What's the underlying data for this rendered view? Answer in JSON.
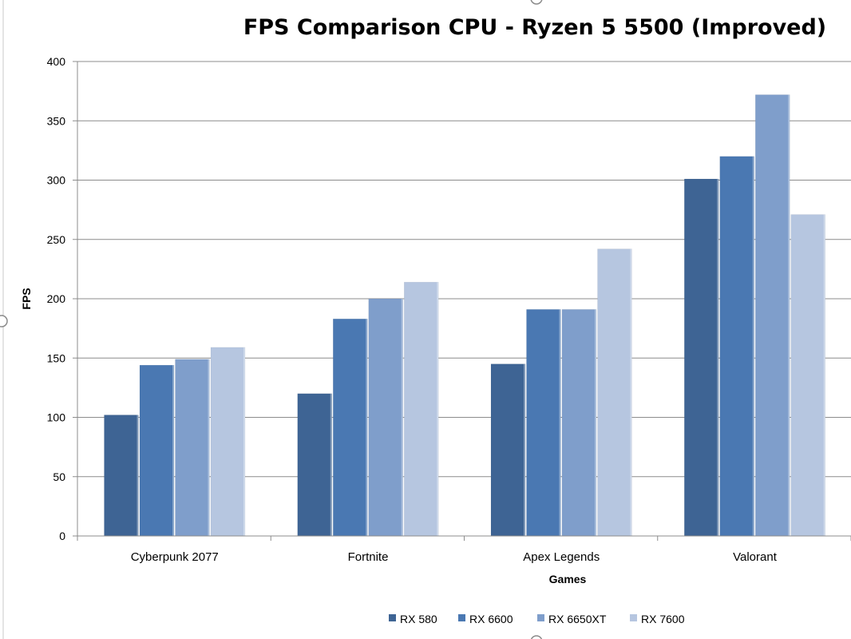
{
  "chart_data": {
    "type": "bar",
    "title": "FPS Comparison CPU - Ryzen 5 5500 (Improved)",
    "xlabel": "Games",
    "ylabel": "FPS",
    "ylim": [
      0,
      400
    ],
    "yticks": [
      0,
      50,
      100,
      150,
      200,
      250,
      300,
      350,
      400
    ],
    "grid": true,
    "legend_position": "bottom",
    "categories": [
      "Cyberpunk 2077",
      "Fortnite",
      "Apex Legends",
      "Valorant"
    ],
    "series": [
      {
        "name": "RX 580",
        "color": "#3e6494",
        "values": [
          102,
          120,
          145,
          301
        ]
      },
      {
        "name": "RX 6600",
        "color": "#4a78b2",
        "values": [
          144,
          183,
          191,
          320
        ]
      },
      {
        "name": "RX 6650XT",
        "color": "#7f9ecb",
        "values": [
          149,
          200,
          191,
          372
        ]
      },
      {
        "name": "RX 7600",
        "color": "#b6c6e0",
        "values": [
          159,
          214,
          242,
          271
        ]
      }
    ]
  }
}
